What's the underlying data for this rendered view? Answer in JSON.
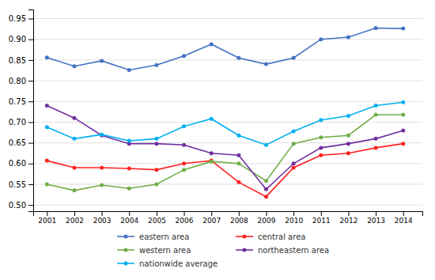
{
  "chart_data": {
    "type": "line",
    "x": [
      2001,
      2002,
      2003,
      2004,
      2005,
      2006,
      2007,
      2008,
      2009,
      2010,
      2011,
      2012,
      2013,
      2014
    ],
    "series": [
      {
        "name": "eastern area",
        "color": "#4472C4",
        "marker": "circle",
        "values": [
          0.856,
          0.835,
          0.848,
          0.826,
          0.838,
          0.86,
          0.888,
          0.855,
          0.84,
          0.855,
          0.9,
          0.905,
          0.927,
          0.926
        ]
      },
      {
        "name": "central area",
        "color": "#FF2020",
        "marker": "circle",
        "values": [
          0.607,
          0.59,
          0.59,
          0.588,
          0.585,
          0.6,
          0.607,
          0.555,
          0.52,
          0.59,
          0.62,
          0.625,
          0.638,
          0.648
        ]
      },
      {
        "name": "western area",
        "color": "#70AD47",
        "marker": "circle",
        "values": [
          0.55,
          0.535,
          0.548,
          0.54,
          0.55,
          0.585,
          0.605,
          0.6,
          0.558,
          0.648,
          0.663,
          0.668,
          0.718,
          0.718
        ]
      },
      {
        "name": "northeastern area",
        "color": "#7030A0",
        "marker": "circle",
        "values": [
          0.74,
          0.71,
          0.668,
          0.648,
          0.648,
          0.645,
          0.625,
          0.62,
          0.538,
          0.6,
          0.638,
          0.648,
          0.66,
          0.68
        ]
      },
      {
        "name": "nationwide average",
        "color": "#00B0F0",
        "marker": "circle",
        "values": [
          0.688,
          0.66,
          0.67,
          0.655,
          0.66,
          0.69,
          0.708,
          0.668,
          0.645,
          0.678,
          0.705,
          0.715,
          0.74,
          0.748
        ]
      }
    ],
    "xlim": [
      2000.5,
      2014.7
    ],
    "xticks": [
      2001,
      2002,
      2003,
      2004,
      2005,
      2006,
      2007,
      2008,
      2009,
      2010,
      2011,
      2012,
      2013,
      2014
    ],
    "ylim": [
      0.485,
      0.972
    ],
    "yticks": [
      {
        "value": 0.5,
        "label": "0.50"
      },
      0.55,
      {
        "value": 0.6,
        "label": "0.60"
      },
      0.65,
      {
        "value": 0.7,
        "label": "0.70"
      },
      0.75,
      {
        "value": 0.8,
        "label": "0.80"
      },
      0.85,
      {
        "value": 0.9,
        "label": "0.90"
      },
      0.95
    ],
    "grid": "y",
    "legend": "bottom"
  }
}
